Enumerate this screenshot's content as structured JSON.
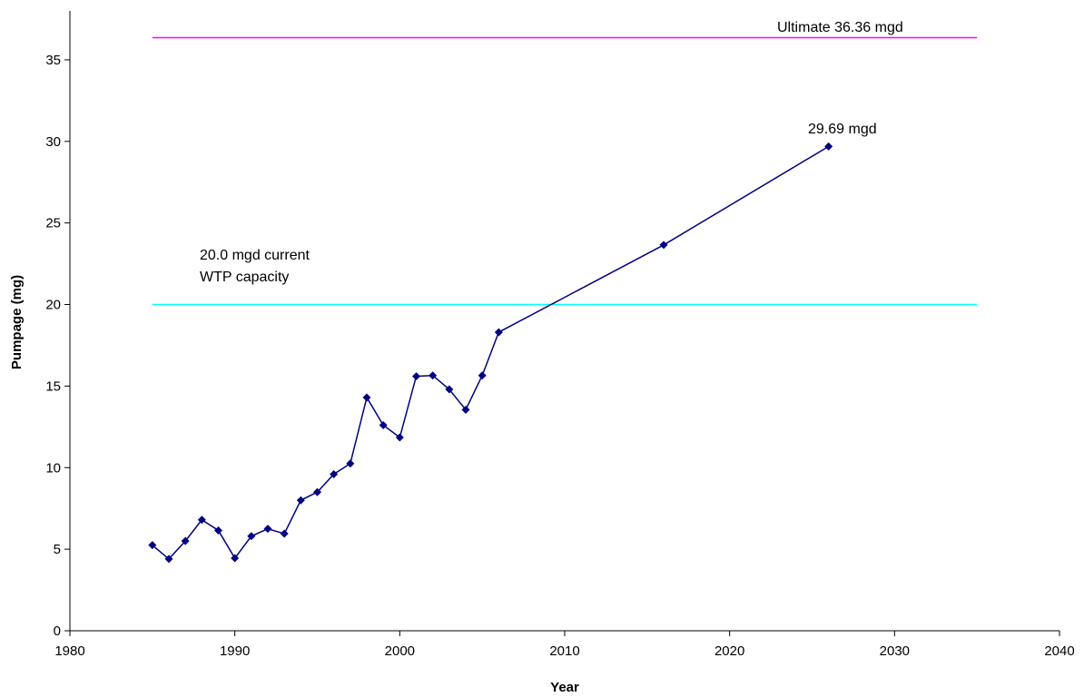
{
  "chart_data": {
    "type": "line",
    "title": "",
    "xlabel": "Year",
    "ylabel": "Pumpage (mg)",
    "xlim": [
      1980,
      2040
    ],
    "ylim": [
      0,
      38
    ],
    "x_ticks": [
      1980,
      1990,
      2000,
      2010,
      2020,
      2030,
      2040
    ],
    "y_ticks": [
      0,
      5,
      10,
      15,
      20,
      25,
      30,
      35
    ],
    "grid": false,
    "legend": "none",
    "series": [
      {
        "color": "#000080",
        "marker": "diamond",
        "x": [
          1985,
          1986,
          1987,
          1988,
          1989,
          1990,
          1991,
          1992,
          1993,
          1994,
          1995,
          1996,
          1997,
          1998,
          1999,
          2000,
          2001,
          2002,
          2003,
          2004,
          2005,
          2006,
          2016,
          2026
        ],
        "y": [
          5.25,
          4.4,
          5.5,
          6.8,
          6.15,
          4.45,
          5.8,
          6.25,
          5.95,
          8.0,
          8.5,
          9.6,
          10.25,
          14.3,
          12.6,
          11.85,
          15.6,
          15.65,
          14.8,
          13.55,
          15.65,
          18.3,
          23.65,
          29.69
        ]
      }
    ],
    "reference_lines": [
      {
        "y": 36.36,
        "x_start": 1985,
        "x_end": 2035,
        "color": "#ff00ff"
      },
      {
        "y": 20.0,
        "x_start": 1985,
        "x_end": 2035,
        "color": "#00ffff"
      }
    ],
    "annotations": {
      "ultimate": "Ultimate 36.36 mgd",
      "last_point": "29.69 mgd",
      "wtp_line1": "20.0 mgd current",
      "wtp_line2": "WTP capacity"
    }
  }
}
